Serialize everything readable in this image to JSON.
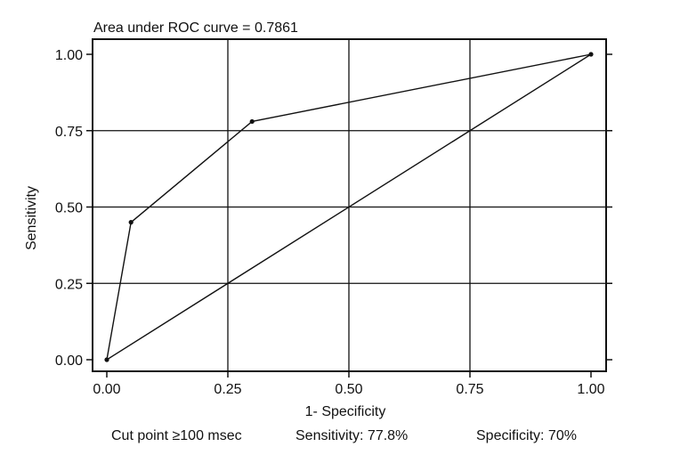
{
  "chart_data": {
    "type": "line",
    "title": "Area under ROC curve = 0.7861",
    "xlabel": "1- Specificity",
    "ylabel": "Sensitivity",
    "xlim": [
      0,
      1
    ],
    "ylim": [
      0,
      1
    ],
    "grid": true,
    "x_ticks": [
      "0.00",
      "0.25",
      "0.50",
      "0.75",
      "1.00"
    ],
    "y_ticks": [
      "0.00",
      "0.25",
      "0.50",
      "0.75",
      "1.00"
    ],
    "series": [
      {
        "x": [
          0.0,
          0.05,
          0.3,
          1.0
        ],
        "y": [
          0.0,
          0.45,
          0.78,
          1.0
        ]
      }
    ],
    "reference_line": {
      "x": [
        0.0,
        1.0
      ],
      "y": [
        0.0,
        1.0
      ]
    },
    "footer": {
      "cut_point": "Cut point  ≥100 msec",
      "sensitivity": "Sensitivity: 77.8%",
      "specificity": "Specificity: 70%"
    },
    "colors": {
      "line": "#111111",
      "grid": "#111111"
    }
  }
}
